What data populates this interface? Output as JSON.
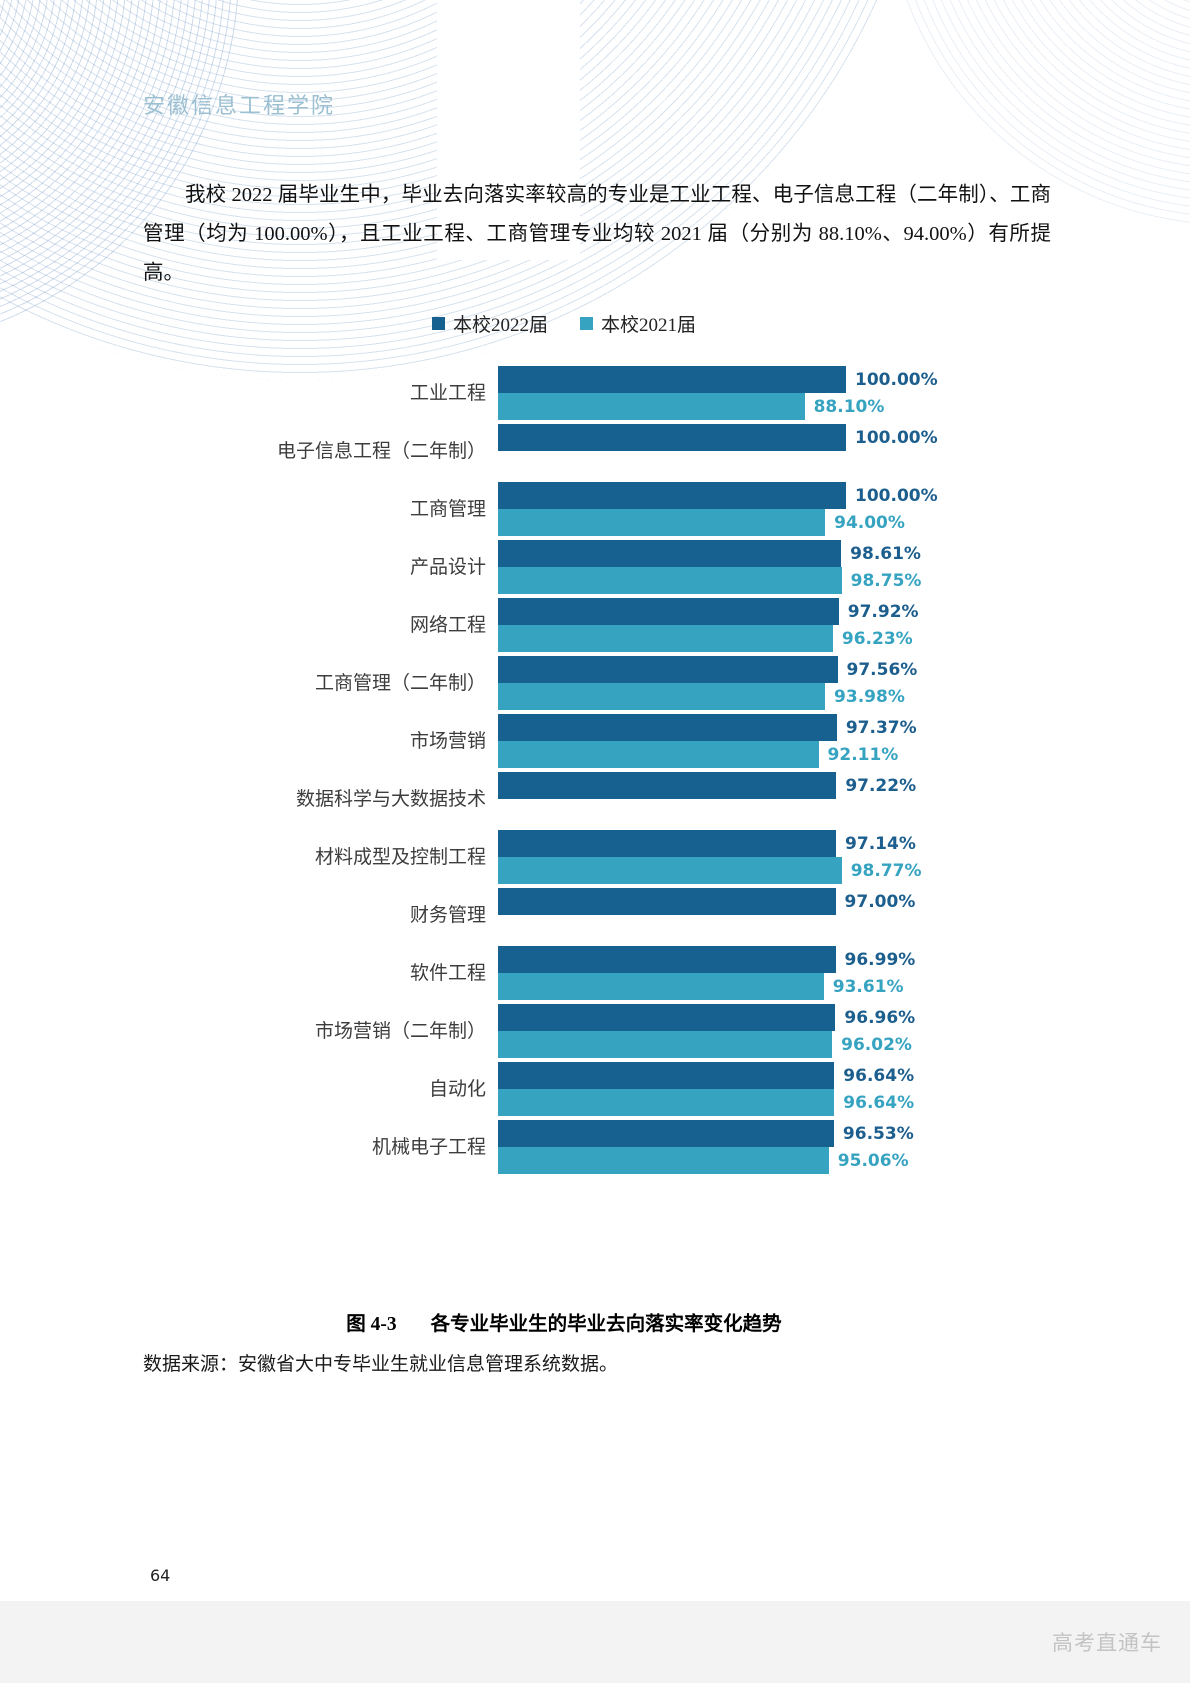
{
  "header": {
    "school_name": "安徽信息工程学院"
  },
  "paragraph": {
    "text": "我校 2022 届毕业生中，毕业去向落实率较高的专业是工业工程、电子信息工程（二年制）、工商管理（均为 100.00%），且工业工程、工商管理专业均较 2021 届（分别为 88.10%、94.00%）有所提高。"
  },
  "chart_data": {
    "type": "bar",
    "orientation": "horizontal",
    "title": "",
    "xlim": [
      0,
      100
    ],
    "legend_position": "top",
    "grid": false,
    "categories": [
      "工业工程",
      "电子信息工程（二年制）",
      "工商管理",
      "产品设计",
      "网络工程",
      "工商管理（二年制）",
      "市场营销",
      "数据科学与大数据技术",
      "材料成型及控制工程",
      "财务管理",
      "软件工程",
      "市场营销（二年制）",
      "自动化",
      "机械电子工程"
    ],
    "series": [
      {
        "name": "本校2022届",
        "color": "#16618F",
        "label_color": "#1C5E8D",
        "values": [
          100.0,
          100.0,
          100.0,
          98.61,
          97.92,
          97.56,
          97.37,
          97.22,
          97.14,
          97.0,
          96.99,
          96.96,
          96.64,
          96.53
        ],
        "labels": [
          "100.00%",
          "100.00%",
          "100.00%",
          "98.61%",
          "97.92%",
          "97.56%",
          "97.37%",
          "97.22%",
          "97.14%",
          "97.00%",
          "96.99%",
          "96.96%",
          "96.64%",
          "96.53%"
        ]
      },
      {
        "name": "本校2021届",
        "color": "#36A3C1",
        "label_color": "#36A3C1",
        "values": [
          88.1,
          null,
          94.0,
          98.75,
          96.23,
          93.98,
          92.11,
          null,
          98.77,
          null,
          93.61,
          96.02,
          96.64,
          95.06
        ],
        "labels": [
          "88.10%",
          null,
          "94.00%",
          "98.75%",
          "96.23%",
          "93.98%",
          "92.11%",
          null,
          "98.77%",
          null,
          "93.61%",
          "96.02%",
          "96.64%",
          "95.06%"
        ]
      }
    ]
  },
  "caption": {
    "figure_label": "图 4-3",
    "figure_title": "各专业毕业生的毕业去向落实率变化趋势"
  },
  "source": {
    "text": "数据来源：安徽省大中专毕业生就业信息管理系统数据。"
  },
  "footer": {
    "page_number": "64",
    "watermark": "高考直通车"
  }
}
